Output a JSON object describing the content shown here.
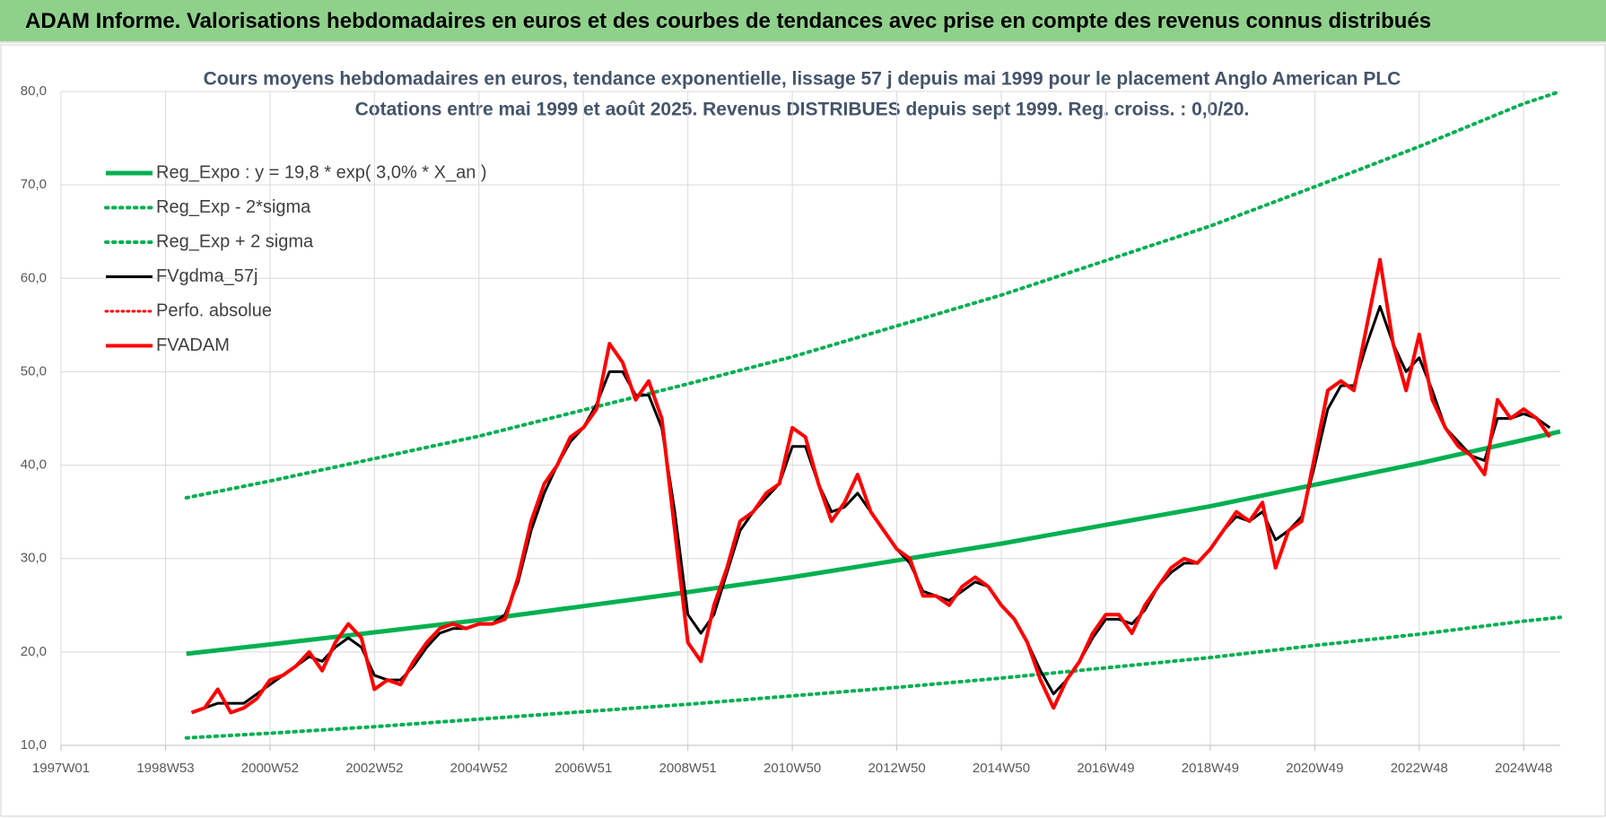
{
  "header": "ADAM Informe. Valorisations hebdomadaires en euros et des courbes de tendances avec prise en compte des revenus connus distribués",
  "chart_data": {
    "type": "line",
    "title": "Cours moyens hebdomadaires en euros, tendance exponentielle, lissage 57 j depuis mai 1999 pour le placement Anglo American PLC",
    "subtitle": "Cotations entre mai 1999 et août 2025.  Revenus DISTRIBUES depuis sept 1999.  Reg. croiss. : 0,0/20.",
    "xlim": [
      1997,
      2025.7
    ],
    "xticks": [
      {
        "value": 1997,
        "label": "1997W01"
      },
      {
        "value": 1999,
        "label": "1998W53"
      },
      {
        "value": 2001,
        "label": "2000W52"
      },
      {
        "value": 2003,
        "label": "2002W52"
      },
      {
        "value": 2005,
        "label": "2004W52"
      },
      {
        "value": 2007,
        "label": "2006W51"
      },
      {
        "value": 2009,
        "label": "2008W51"
      },
      {
        "value": 2011,
        "label": "2010W50"
      },
      {
        "value": 2013,
        "label": "2012W50"
      },
      {
        "value": 2015,
        "label": "2014W50"
      },
      {
        "value": 2017,
        "label": "2016W49"
      },
      {
        "value": 2019,
        "label": "2018W49"
      },
      {
        "value": 2021,
        "label": "2020W49"
      },
      {
        "value": 2023,
        "label": "2022W48"
      },
      {
        "value": 2025,
        "label": "2024W48"
      }
    ],
    "ylim": [
      10,
      80
    ],
    "yticks": [
      {
        "value": 10,
        "label": "10,0"
      },
      {
        "value": 20,
        "label": "20,0"
      },
      {
        "value": 30,
        "label": "30,0"
      },
      {
        "value": 40,
        "label": "40,0"
      },
      {
        "value": 50,
        "label": "50,0"
      },
      {
        "value": 60,
        "label": "60,0"
      },
      {
        "value": 70,
        "label": "70,0"
      },
      {
        "value": 80,
        "label": "80,0"
      }
    ],
    "grid": true,
    "legend_position": "upper-left",
    "series": [
      {
        "name": "Reg_Expo : y = 19,8 * exp( 3,0% *  X_an )",
        "color": "#00b050",
        "style": "solid",
        "width": 5,
        "x": [
          1999.4,
          2001,
          2003,
          2005,
          2007,
          2009,
          2011,
          2013,
          2015,
          2017,
          2019,
          2021,
          2023,
          2025,
          2025.7
        ],
        "values": [
          19.8,
          20.8,
          22.1,
          23.4,
          24.9,
          26.4,
          28.0,
          29.8,
          31.6,
          33.6,
          35.6,
          37.9,
          40.2,
          42.7,
          43.6
        ]
      },
      {
        "name": "Reg_Exp - 2*sigma",
        "color": "#00b050",
        "style": "dotted",
        "width": 4,
        "x": [
          1999.4,
          2001,
          2003,
          2005,
          2007,
          2009,
          2011,
          2013,
          2015,
          2017,
          2019,
          2021,
          2023,
          2025,
          2025.7
        ],
        "values": [
          10.8,
          11.3,
          12.0,
          12.8,
          13.6,
          14.4,
          15.3,
          16.2,
          17.2,
          18.3,
          19.4,
          20.7,
          21.9,
          23.3,
          23.7
        ]
      },
      {
        "name": "Reg_Exp + 2 sigma",
        "color": "#00b050",
        "style": "dotted",
        "width": 4,
        "x": [
          1999.4,
          2001,
          2003,
          2005,
          2007,
          2009,
          2011,
          2013,
          2015,
          2017,
          2019,
          2021,
          2023,
          2025,
          2025.7
        ],
        "values": [
          36.5,
          38.3,
          40.7,
          43.1,
          45.9,
          48.7,
          51.6,
          54.9,
          58.2,
          61.9,
          65.6,
          69.8,
          74.1,
          78.7,
          80.0
        ]
      },
      {
        "name": "FVgdma_57j",
        "color": "#000000",
        "style": "solid",
        "width": 3,
        "x": [
          1999.5,
          1999.75,
          2000,
          2000.25,
          2000.5,
          2000.75,
          2001,
          2001.25,
          2001.5,
          2001.75,
          2002,
          2002.25,
          2002.5,
          2002.75,
          2003,
          2003.25,
          2003.5,
          2003.75,
          2004,
          2004.25,
          2004.5,
          2004.75,
          2005,
          2005.25,
          2005.5,
          2005.75,
          2006,
          2006.25,
          2006.5,
          2006.75,
          2007,
          2007.25,
          2007.5,
          2007.75,
          2008,
          2008.25,
          2008.5,
          2008.75,
          2009,
          2009.25,
          2009.5,
          2009.75,
          2010,
          2010.25,
          2010.5,
          2010.75,
          2011,
          2011.25,
          2011.5,
          2011.75,
          2012,
          2012.25,
          2012.5,
          2012.75,
          2013,
          2013.25,
          2013.5,
          2013.75,
          2014,
          2014.25,
          2014.5,
          2014.75,
          2015,
          2015.25,
          2015.5,
          2015.75,
          2016,
          2016.25,
          2016.5,
          2016.75,
          2017,
          2017.25,
          2017.5,
          2017.75,
          2018,
          2018.25,
          2018.5,
          2018.75,
          2019,
          2019.25,
          2019.5,
          2019.75,
          2020,
          2020.25,
          2020.5,
          2020.75,
          2021,
          2021.25,
          2021.5,
          2021.75,
          2022,
          2022.25,
          2022.5,
          2022.75,
          2023,
          2023.25,
          2023.5,
          2023.75,
          2024,
          2024.25,
          2024.5,
          2024.75,
          2025,
          2025.25,
          2025.5
        ],
        "values": [
          13.5,
          14,
          14.5,
          14.5,
          14.5,
          15.5,
          16.5,
          17.5,
          18.5,
          19.5,
          19,
          20.5,
          21.5,
          20.5,
          17.5,
          17,
          17,
          18.5,
          20.5,
          22,
          22.5,
          22.5,
          23,
          23,
          24,
          27.5,
          33,
          37,
          40,
          42.5,
          44,
          46.5,
          50,
          50,
          47.5,
          47.5,
          44,
          35,
          24,
          22,
          24,
          28.5,
          33,
          35,
          36.5,
          38,
          42,
          42,
          38,
          35,
          35.5,
          37,
          35,
          33,
          31,
          29.5,
          26.5,
          26,
          25.5,
          26.5,
          27.5,
          27,
          25,
          23.5,
          21,
          18,
          15.5,
          17,
          19,
          21.5,
          23.5,
          23.5,
          23,
          24.5,
          27,
          28.5,
          29.5,
          29.5,
          31,
          33,
          34.5,
          34,
          35,
          32,
          33,
          34.5,
          40,
          46,
          48.5,
          48.5,
          53,
          57,
          53,
          50,
          51.5,
          48,
          44,
          42.5,
          41,
          40.5,
          45,
          45,
          45.5,
          45,
          44
        ]
      },
      {
        "name": "Perfo. absolue",
        "color": "#ff0000",
        "style": "dotted",
        "width": 3,
        "x": [],
        "values": []
      },
      {
        "name": "FVADAM",
        "color": "#ff0000",
        "style": "solid",
        "width": 4,
        "x": [
          1999.5,
          1999.75,
          2000,
          2000.25,
          2000.5,
          2000.75,
          2001,
          2001.25,
          2001.5,
          2001.75,
          2002,
          2002.25,
          2002.5,
          2002.75,
          2003,
          2003.25,
          2003.5,
          2003.75,
          2004,
          2004.25,
          2004.5,
          2004.75,
          2005,
          2005.25,
          2005.5,
          2005.75,
          2006,
          2006.25,
          2006.5,
          2006.75,
          2007,
          2007.25,
          2007.5,
          2007.75,
          2008,
          2008.25,
          2008.5,
          2008.75,
          2009,
          2009.25,
          2009.5,
          2009.75,
          2010,
          2010.25,
          2010.5,
          2010.75,
          2011,
          2011.25,
          2011.5,
          2011.75,
          2012,
          2012.25,
          2012.5,
          2012.75,
          2013,
          2013.25,
          2013.5,
          2013.75,
          2014,
          2014.25,
          2014.5,
          2014.75,
          2015,
          2015.25,
          2015.5,
          2015.75,
          2016,
          2016.25,
          2016.5,
          2016.75,
          2017,
          2017.25,
          2017.5,
          2017.75,
          2018,
          2018.25,
          2018.5,
          2018.75,
          2019,
          2019.25,
          2019.5,
          2019.75,
          2020,
          2020.25,
          2020.5,
          2020.75,
          2021,
          2021.25,
          2021.5,
          2021.75,
          2022,
          2022.25,
          2022.5,
          2022.75,
          2023,
          2023.25,
          2023.5,
          2023.75,
          2024,
          2024.25,
          2024.5,
          2024.75,
          2025,
          2025.25,
          2025.5
        ],
        "values": [
          13.5,
          14,
          16,
          13.5,
          14,
          15,
          17,
          17.5,
          18.5,
          20,
          18,
          21,
          23,
          21.5,
          16,
          17,
          16.5,
          19,
          21,
          22.5,
          23,
          22.5,
          23,
          23,
          23.5,
          28,
          34,
          38,
          40,
          43,
          44,
          46,
          53,
          51,
          47,
          49,
          45,
          33,
          21,
          19,
          25,
          29,
          34,
          35,
          37,
          38,
          44,
          43,
          38,
          34,
          36,
          39,
          35,
          33,
          31,
          30,
          26,
          26,
          25,
          27,
          28,
          27,
          25,
          23.5,
          21,
          17,
          14,
          17,
          19,
          22,
          24,
          24,
          22,
          25,
          27,
          29,
          30,
          29.5,
          31,
          33,
          35,
          34,
          36,
          29,
          33,
          34,
          41,
          48,
          49,
          48,
          55,
          62,
          53,
          48,
          54,
          47,
          44,
          42,
          41,
          39,
          47,
          45,
          46,
          45,
          43
        ]
      }
    ]
  }
}
